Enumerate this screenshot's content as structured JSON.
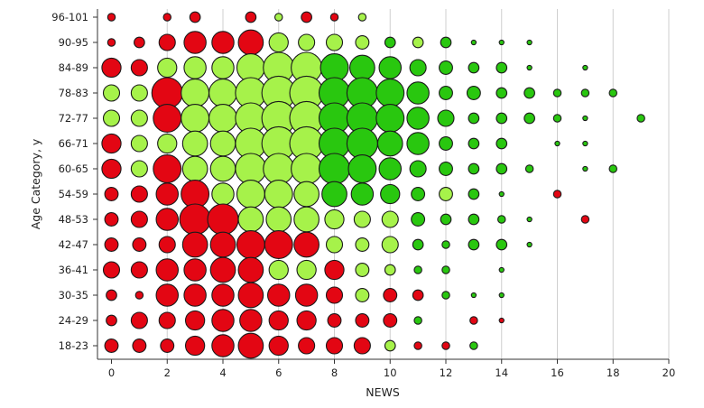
{
  "chart_data": {
    "type": "scatter",
    "subtype": "bubble",
    "xlabel": "NEWS",
    "ylabel": "Age Category, y",
    "xlim": [
      0,
      20
    ],
    "x_ticks": [
      0,
      2,
      4,
      6,
      8,
      10,
      12,
      14,
      16,
      18,
      20
    ],
    "grid": "vertical",
    "categories": [
      "18-23",
      "24-29",
      "30-35",
      "36-41",
      "42-47",
      "48-53",
      "54-59",
      "60-65",
      "66-71",
      "72-77",
      "78-83",
      "84-89",
      "90-95",
      "96-101"
    ],
    "colors": {
      "red": "#e30613",
      "light_green": "#a6f24a",
      "green": "#29c70f",
      "outline": "#1a1a1a",
      "grid": "#cfcfcf",
      "axis": "#333333"
    },
    "size_scale": "bubble diameter proportional to relative size value",
    "rows": [
      {
        "age": "96-101",
        "points": [
          [
            0,
            "red",
            2
          ],
          [
            2,
            "red",
            2
          ],
          [
            3,
            "red",
            3
          ],
          [
            5,
            "red",
            3
          ],
          [
            6,
            "light_green",
            2
          ],
          [
            7,
            "red",
            3
          ],
          [
            8,
            "red",
            2
          ],
          [
            9,
            "light_green",
            2
          ]
        ]
      },
      {
        "age": "90-95",
        "points": [
          [
            0,
            "red",
            2
          ],
          [
            1,
            "red",
            3
          ],
          [
            2,
            "red",
            5
          ],
          [
            3,
            "red",
            7
          ],
          [
            4,
            "red",
            7
          ],
          [
            5,
            "red",
            8
          ],
          [
            6,
            "light_green",
            6
          ],
          [
            7,
            "light_green",
            5
          ],
          [
            8,
            "light_green",
            5
          ],
          [
            9,
            "light_green",
            4
          ],
          [
            10,
            "green",
            3
          ],
          [
            11,
            "light_green",
            3
          ],
          [
            12,
            "green",
            3
          ],
          [
            13,
            "green",
            1
          ],
          [
            14,
            "green",
            1
          ],
          [
            15,
            "green",
            1
          ]
        ]
      },
      {
        "age": "84-89",
        "points": [
          [
            0,
            "red",
            6
          ],
          [
            1,
            "red",
            5
          ],
          [
            2,
            "light_green",
            6
          ],
          [
            3,
            "light_green",
            7
          ],
          [
            4,
            "light_green",
            7
          ],
          [
            5,
            "light_green",
            9
          ],
          [
            6,
            "light_green",
            10
          ],
          [
            7,
            "light_green",
            10
          ],
          [
            8,
            "green",
            9
          ],
          [
            9,
            "green",
            8
          ],
          [
            10,
            "green",
            7
          ],
          [
            11,
            "green",
            5
          ],
          [
            12,
            "green",
            4
          ],
          [
            13,
            "green",
            3
          ],
          [
            14,
            "green",
            3
          ],
          [
            15,
            "green",
            1
          ],
          [
            17,
            "green",
            1
          ]
        ]
      },
      {
        "age": "78-83",
        "points": [
          [
            0,
            "light_green",
            5
          ],
          [
            1,
            "light_green",
            5
          ],
          [
            2,
            "red",
            10
          ],
          [
            3,
            "light_green",
            9
          ],
          [
            4,
            "light_green",
            9
          ],
          [
            5,
            "light_green",
            10
          ],
          [
            6,
            "light_green",
            11
          ],
          [
            7,
            "light_green",
            11
          ],
          [
            8,
            "green",
            10
          ],
          [
            9,
            "green",
            10
          ],
          [
            10,
            "green",
            9
          ],
          [
            11,
            "green",
            7
          ],
          [
            12,
            "green",
            4
          ],
          [
            13,
            "green",
            4
          ],
          [
            14,
            "green",
            3
          ],
          [
            15,
            "green",
            3
          ],
          [
            16,
            "green",
            2
          ],
          [
            17,
            "green",
            2
          ],
          [
            18,
            "green",
            2
          ]
        ]
      },
      {
        "age": "72-77",
        "points": [
          [
            0,
            "light_green",
            5
          ],
          [
            1,
            "light_green",
            5
          ],
          [
            2,
            "red",
            9
          ],
          [
            3,
            "light_green",
            9
          ],
          [
            4,
            "light_green",
            9
          ],
          [
            5,
            "light_green",
            10
          ],
          [
            6,
            "light_green",
            11
          ],
          [
            7,
            "light_green",
            11
          ],
          [
            8,
            "green",
            10
          ],
          [
            9,
            "green",
            10
          ],
          [
            10,
            "green",
            9
          ],
          [
            11,
            "green",
            7
          ],
          [
            12,
            "green",
            5
          ],
          [
            13,
            "green",
            3
          ],
          [
            14,
            "green",
            3
          ],
          [
            15,
            "green",
            3
          ],
          [
            16,
            "green",
            2
          ],
          [
            17,
            "green",
            1
          ],
          [
            19,
            "green",
            2
          ]
        ]
      },
      {
        "age": "66-71",
        "points": [
          [
            0,
            "red",
            6
          ],
          [
            1,
            "light_green",
            5
          ],
          [
            2,
            "light_green",
            6
          ],
          [
            3,
            "light_green",
            8
          ],
          [
            4,
            "light_green",
            8
          ],
          [
            5,
            "light_green",
            10
          ],
          [
            6,
            "light_green",
            11
          ],
          [
            7,
            "light_green",
            11
          ],
          [
            8,
            "green",
            10
          ],
          [
            9,
            "green",
            10
          ],
          [
            10,
            "green",
            8
          ],
          [
            11,
            "green",
            7
          ],
          [
            12,
            "green",
            4
          ],
          [
            13,
            "green",
            3
          ],
          [
            14,
            "green",
            3
          ],
          [
            16,
            "green",
            1
          ],
          [
            17,
            "green",
            1
          ]
        ]
      },
      {
        "age": "60-65",
        "points": [
          [
            0,
            "red",
            6
          ],
          [
            1,
            "light_green",
            5
          ],
          [
            2,
            "red",
            9
          ],
          [
            3,
            "light_green",
            8
          ],
          [
            4,
            "light_green",
            8
          ],
          [
            5,
            "light_green",
            10
          ],
          [
            6,
            "light_green",
            10
          ],
          [
            7,
            "light_green",
            10
          ],
          [
            8,
            "green",
            10
          ],
          [
            9,
            "green",
            9
          ],
          [
            10,
            "green",
            7
          ],
          [
            11,
            "green",
            5
          ],
          [
            12,
            "green",
            4
          ],
          [
            13,
            "green",
            3
          ],
          [
            14,
            "green",
            3
          ],
          [
            15,
            "green",
            2
          ],
          [
            17,
            "green",
            1
          ],
          [
            18,
            "green",
            2
          ]
        ]
      },
      {
        "age": "54-59",
        "points": [
          [
            0,
            "red",
            4
          ],
          [
            1,
            "red",
            5
          ],
          [
            2,
            "red",
            7
          ],
          [
            3,
            "red",
            9
          ],
          [
            4,
            "light_green",
            7
          ],
          [
            5,
            "light_green",
            9
          ],
          [
            6,
            "light_green",
            9
          ],
          [
            7,
            "light_green",
            8
          ],
          [
            8,
            "green",
            8
          ],
          [
            9,
            "green",
            7
          ],
          [
            10,
            "green",
            6
          ],
          [
            11,
            "green",
            4
          ],
          [
            12,
            "light_green",
            4
          ],
          [
            13,
            "green",
            3
          ],
          [
            14,
            "green",
            1
          ],
          [
            16,
            "red",
            2
          ]
        ]
      },
      {
        "age": "48-53",
        "points": [
          [
            0,
            "red",
            4
          ],
          [
            1,
            "red",
            5
          ],
          [
            2,
            "red",
            7
          ],
          [
            3,
            "red",
            10
          ],
          [
            4,
            "red",
            10
          ],
          [
            5,
            "light_green",
            8
          ],
          [
            6,
            "light_green",
            8
          ],
          [
            7,
            "light_green",
            8
          ],
          [
            8,
            "light_green",
            6
          ],
          [
            9,
            "light_green",
            5
          ],
          [
            10,
            "light_green",
            5
          ],
          [
            11,
            "green",
            4
          ],
          [
            12,
            "green",
            3
          ],
          [
            13,
            "green",
            3
          ],
          [
            14,
            "green",
            2
          ],
          [
            15,
            "green",
            1
          ],
          [
            17,
            "red",
            2
          ]
        ]
      },
      {
        "age": "42-47",
        "points": [
          [
            0,
            "red",
            4
          ],
          [
            1,
            "red",
            4
          ],
          [
            2,
            "red",
            5
          ],
          [
            3,
            "red",
            8
          ],
          [
            4,
            "red",
            8
          ],
          [
            5,
            "red",
            9
          ],
          [
            6,
            "red",
            9
          ],
          [
            7,
            "red",
            8
          ],
          [
            8,
            "light_green",
            5
          ],
          [
            9,
            "light_green",
            4
          ],
          [
            10,
            "light_green",
            5
          ],
          [
            11,
            "green",
            3
          ],
          [
            12,
            "green",
            2
          ],
          [
            13,
            "green",
            3
          ],
          [
            14,
            "green",
            3
          ],
          [
            15,
            "green",
            1
          ]
        ]
      },
      {
        "age": "36-41",
        "points": [
          [
            0,
            "red",
            5
          ],
          [
            1,
            "red",
            5
          ],
          [
            2,
            "red",
            7
          ],
          [
            3,
            "red",
            7
          ],
          [
            4,
            "red",
            8
          ],
          [
            5,
            "red",
            8
          ],
          [
            6,
            "light_green",
            6
          ],
          [
            7,
            "light_green",
            6
          ],
          [
            8,
            "red",
            6
          ],
          [
            9,
            "light_green",
            4
          ],
          [
            10,
            "light_green",
            3
          ],
          [
            11,
            "green",
            2
          ],
          [
            12,
            "green",
            2
          ],
          [
            14,
            "green",
            1
          ]
        ]
      },
      {
        "age": "30-35",
        "points": [
          [
            0,
            "red",
            3
          ],
          [
            1,
            "red",
            2
          ],
          [
            2,
            "red",
            7
          ],
          [
            3,
            "red",
            7
          ],
          [
            4,
            "red",
            7
          ],
          [
            5,
            "red",
            8
          ],
          [
            6,
            "red",
            7
          ],
          [
            7,
            "red",
            7
          ],
          [
            8,
            "red",
            5
          ],
          [
            9,
            "light_green",
            4
          ],
          [
            10,
            "red",
            4
          ],
          [
            11,
            "red",
            3
          ],
          [
            12,
            "green",
            2
          ],
          [
            13,
            "green",
            1
          ],
          [
            14,
            "green",
            1
          ]
        ]
      },
      {
        "age": "24-29",
        "points": [
          [
            0,
            "red",
            3
          ],
          [
            1,
            "red",
            5
          ],
          [
            2,
            "red",
            5
          ],
          [
            3,
            "red",
            6
          ],
          [
            4,
            "red",
            7
          ],
          [
            5,
            "red",
            7
          ],
          [
            6,
            "red",
            6
          ],
          [
            7,
            "red",
            6
          ],
          [
            8,
            "red",
            4
          ],
          [
            9,
            "red",
            4
          ],
          [
            10,
            "red",
            4
          ],
          [
            11,
            "green",
            2
          ],
          [
            13,
            "red",
            2
          ],
          [
            14,
            "red",
            1
          ]
        ]
      },
      {
        "age": "18-23",
        "points": [
          [
            0,
            "red",
            4
          ],
          [
            1,
            "red",
            4
          ],
          [
            2,
            "red",
            4
          ],
          [
            3,
            "red",
            6
          ],
          [
            4,
            "red",
            7
          ],
          [
            5,
            "red",
            8
          ],
          [
            6,
            "red",
            6
          ],
          [
            7,
            "red",
            5
          ],
          [
            8,
            "red",
            5
          ],
          [
            9,
            "red",
            5
          ],
          [
            10,
            "light_green",
            3
          ],
          [
            11,
            "red",
            2
          ],
          [
            12,
            "red",
            2
          ],
          [
            13,
            "green",
            2
          ]
        ]
      }
    ]
  }
}
